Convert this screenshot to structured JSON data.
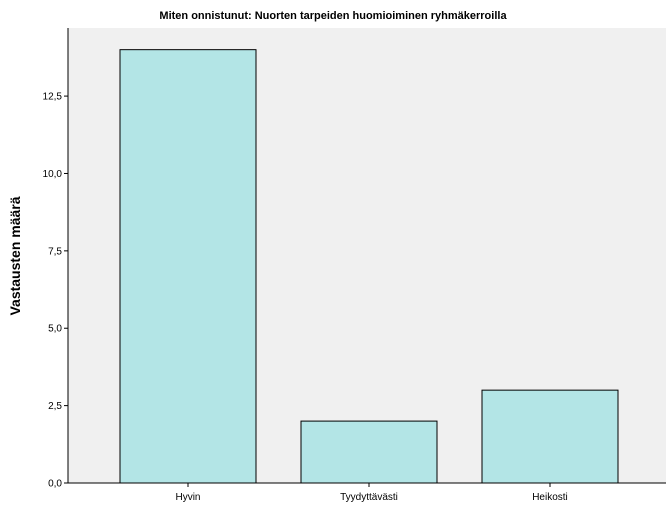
{
  "chart_data": {
    "type": "bar",
    "title": "Miten onnistunut: Nuorten tarpeiden huomioiminen ryhmäkerroilla",
    "xlabel": "",
    "ylabel": "Vastausten määrä",
    "categories": [
      "Hyvin",
      "Tyydyttävästi",
      "Heikosti"
    ],
    "values": [
      14,
      2,
      3
    ],
    "ylim": [
      0,
      14.7
    ],
    "yticks": [
      0,
      2.5,
      5,
      7.5,
      10,
      12.5
    ],
    "ytick_labels": [
      "0,0",
      "2,5",
      "5,0",
      "7,5",
      "10,0",
      "12,5"
    ],
    "grid": false,
    "legend": "none",
    "colors": {
      "plot_background": "#f0f0f0",
      "bar_fill": "#b3e5e6",
      "bar_stroke": "#000000"
    }
  }
}
